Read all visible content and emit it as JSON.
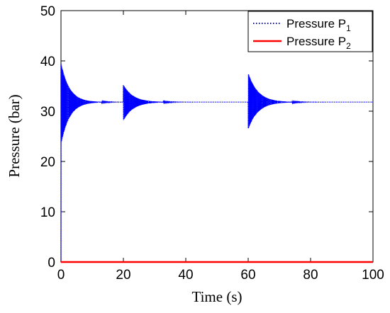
{
  "chart_data": {
    "type": "line",
    "xlabel": "Time (s)",
    "ylabel": "Pressure (bar)",
    "xlim": [
      0,
      100
    ],
    "ylim": [
      0,
      50
    ],
    "xticks": [
      "0",
      "20",
      "40",
      "60",
      "80",
      "100"
    ],
    "yticks": [
      "0",
      "10",
      "20",
      "30",
      "40",
      "50"
    ],
    "grid": false,
    "legend_position": "top-right",
    "series": [
      {
        "name": "Pressure P1",
        "name_main": "Pressure P",
        "name_sub": "1",
        "color": "#0000ff",
        "style": "dotted",
        "behavior": "damped oscillation settling to steady value",
        "steady_value": 31.8,
        "bursts": [
          {
            "t_start": 0,
            "t_end": 12,
            "max": 39.5,
            "min": 23.5
          },
          {
            "t_start": 20,
            "t_end": 34,
            "max": 35.2,
            "min": 28.2
          },
          {
            "t_start": 60,
            "t_end": 74,
            "max": 37.5,
            "min": 26.5
          }
        ]
      },
      {
        "name": "Pressure P2",
        "name_main": "Pressure P",
        "name_sub": "2",
        "color": "#ff0000",
        "style": "solid",
        "x": [
          0,
          100
        ],
        "y": [
          0,
          0
        ]
      }
    ]
  }
}
